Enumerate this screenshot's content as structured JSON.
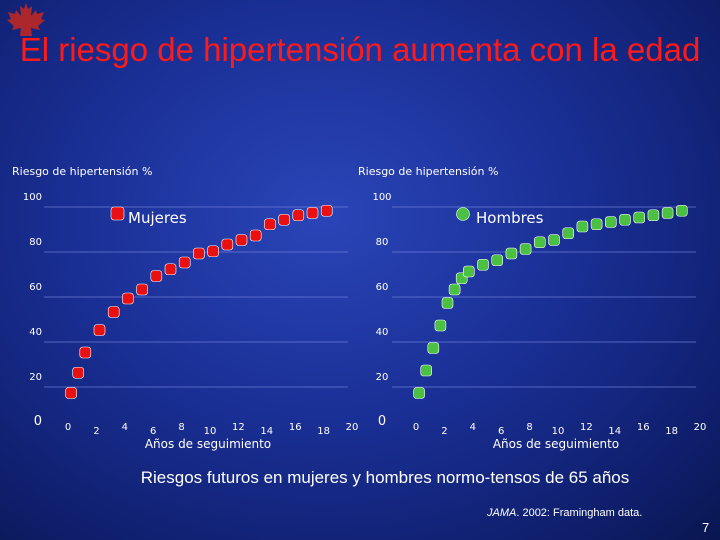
{
  "slide": {
    "title": "El riesgo de hipertensión aumenta con la edad",
    "footer": "Riesgos futuros en mujeres y hombres normo-tensos de 65 años",
    "source_journal": "JAMA",
    "source_rest": ". 2002: Framingham data.",
    "page_number": "7"
  },
  "colors": {
    "background": "#1a2f95",
    "title": "#ff1a1a",
    "female_series": "#e81010",
    "male_series": "#4cc043",
    "grid": "#6f7fd8",
    "logo": "#c8281e"
  },
  "icons": {
    "logo": "maple-leaf-icon"
  },
  "chart_data": [
    {
      "type": "scatter",
      "ylabel": "Riesgo de hipertensión %",
      "xlabel": "Años de seguimiento",
      "legend": "Mujeres",
      "legend_position": "top",
      "grid": true,
      "xlim": [
        0,
        20
      ],
      "ylim": [
        0,
        100
      ],
      "x_ticks": [
        "0",
        "2",
        "4",
        "6",
        "8",
        "10",
        "12",
        "14",
        "16",
        "18",
        "20"
      ],
      "y_ticks": [
        "0",
        "20",
        "40",
        "60",
        "80",
        "100"
      ],
      "series": [
        {
          "name": "Mujeres",
          "x": [
            0.5,
            1,
            1.5,
            2.5,
            3.5,
            4.5,
            5.5,
            6.5,
            7.5,
            8.5,
            9.5,
            10.5,
            11.5,
            12.5,
            13.5,
            14.5,
            15.5,
            16.5,
            17.5,
            18.5
          ],
          "y": [
            12,
            21,
            30,
            40,
            48,
            54,
            58,
            64,
            67,
            70,
            74,
            75,
            78,
            80,
            82,
            87,
            89,
            91,
            92,
            93
          ]
        }
      ]
    },
    {
      "type": "scatter",
      "ylabel": "Riesgo de hipertensión %",
      "xlabel": "Años de seguimiento",
      "legend": "Hombres",
      "legend_position": "top",
      "grid": true,
      "xlim": [
        0,
        20
      ],
      "ylim": [
        0,
        100
      ],
      "x_ticks": [
        "0",
        "2",
        "4",
        "6",
        "8",
        "10",
        "12",
        "14",
        "16",
        "18",
        "20"
      ],
      "y_ticks": [
        "0",
        "20",
        "40",
        "60",
        "80",
        "100"
      ],
      "series": [
        {
          "name": "Hombres",
          "x": [
            0.5,
            1,
            1.5,
            2,
            2.5,
            3,
            3.5,
            4,
            5,
            6,
            7,
            8,
            9,
            10,
            11,
            12,
            13,
            14,
            15,
            16,
            17,
            18,
            19
          ],
          "y": [
            12,
            22,
            32,
            42,
            52,
            58,
            63,
            66,
            69,
            71,
            74,
            76,
            79,
            80,
            83,
            86,
            87,
            88,
            89,
            90,
            91,
            92,
            93
          ]
        }
      ]
    }
  ]
}
